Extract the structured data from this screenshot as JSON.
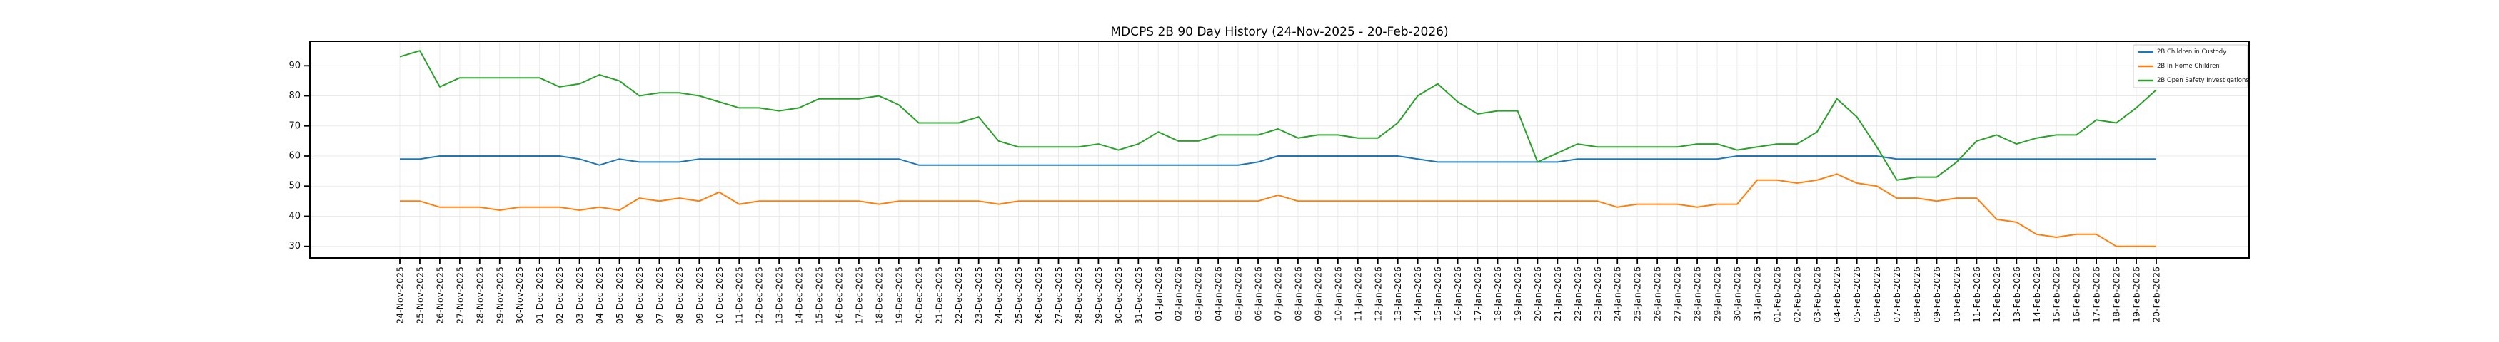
{
  "chart": {
    "title": "MDCPS 2B 90 Day History (24-Nov-2025 - 20-Feb-2026)"
  },
  "chart_data": {
    "type": "line",
    "title": "MDCPS 2B 90 Day History (24-Nov-2025 - 20-Feb-2026)",
    "xlabel": "",
    "ylabel": "",
    "grid": true,
    "legend_position": "upper right",
    "background_color": "#ffffff",
    "grid_color": "#ebebeb",
    "ylim": [
      26,
      98.3
    ],
    "yticks": [
      30,
      40,
      50,
      60,
      70,
      80,
      90
    ],
    "x": [
      "24-Nov-2025",
      "25-Nov-2025",
      "26-Nov-2025",
      "27-Nov-2025",
      "28-Nov-2025",
      "29-Nov-2025",
      "30-Nov-2025",
      "01-Dec-2025",
      "02-Dec-2025",
      "03-Dec-2025",
      "04-Dec-2025",
      "05-Dec-2025",
      "06-Dec-2025",
      "07-Dec-2025",
      "08-Dec-2025",
      "09-Dec-2025",
      "10-Dec-2025",
      "11-Dec-2025",
      "12-Dec-2025",
      "13-Dec-2025",
      "14-Dec-2025",
      "15-Dec-2025",
      "16-Dec-2025",
      "17-Dec-2025",
      "18-Dec-2025",
      "19-Dec-2025",
      "20-Dec-2025",
      "21-Dec-2025",
      "22-Dec-2025",
      "23-Dec-2025",
      "24-Dec-2025",
      "25-Dec-2025",
      "26-Dec-2025",
      "27-Dec-2025",
      "28-Dec-2025",
      "29-Dec-2025",
      "30-Dec-2025",
      "31-Dec-2025",
      "01-Jan-2026",
      "02-Jan-2026",
      "03-Jan-2026",
      "04-Jan-2026",
      "05-Jan-2026",
      "06-Jan-2026",
      "07-Jan-2026",
      "08-Jan-2026",
      "09-Jan-2026",
      "10-Jan-2026",
      "11-Jan-2026",
      "12-Jan-2026",
      "13-Jan-2026",
      "14-Jan-2026",
      "15-Jan-2026",
      "16-Jan-2026",
      "17-Jan-2026",
      "18-Jan-2026",
      "19-Jan-2026",
      "20-Jan-2026",
      "21-Jan-2026",
      "22-Jan-2026",
      "23-Jan-2026",
      "24-Jan-2026",
      "25-Jan-2026",
      "26-Jan-2026",
      "27-Jan-2026",
      "28-Jan-2026",
      "29-Jan-2026",
      "30-Jan-2026",
      "31-Jan-2026",
      "01-Feb-2026",
      "02-Feb-2026",
      "03-Feb-2026",
      "04-Feb-2026",
      "05-Feb-2026",
      "06-Feb-2026",
      "07-Feb-2026",
      "08-Feb-2026",
      "09-Feb-2026",
      "10-Feb-2026",
      "11-Feb-2026",
      "12-Feb-2026",
      "13-Feb-2026",
      "14-Feb-2026",
      "15-Feb-2026",
      "16-Feb-2026",
      "17-Feb-2026",
      "18-Feb-2026",
      "19-Feb-2026",
      "20-Feb-2026"
    ],
    "series": [
      {
        "name": "2B Children in Custody",
        "color": "#1f77b4",
        "values": [
          59,
          59,
          60,
          60,
          60,
          60,
          60,
          60,
          60,
          59,
          57,
          59,
          58,
          58,
          58,
          59,
          59,
          59,
          59,
          59,
          59,
          59,
          59,
          59,
          59,
          59,
          57,
          57,
          57,
          57,
          57,
          57,
          57,
          57,
          57,
          57,
          57,
          57,
          57,
          57,
          57,
          57,
          57,
          58,
          60,
          60,
          60,
          60,
          60,
          60,
          60,
          59,
          58,
          58,
          58,
          58,
          58,
          58,
          58,
          59,
          59,
          59,
          59,
          59,
          59,
          59,
          59,
          60,
          60,
          60,
          60,
          60,
          60,
          60,
          60,
          59,
          59,
          59,
          59,
          59,
          59,
          59,
          59,
          59,
          59,
          59,
          59,
          59,
          59
        ]
      },
      {
        "name": "2B In Home Children",
        "color": "#ff7f0e",
        "values": [
          45,
          45,
          43,
          43,
          43,
          42,
          43,
          43,
          43,
          42,
          43,
          42,
          46,
          45,
          46,
          45,
          48,
          44,
          45,
          45,
          45,
          45,
          45,
          45,
          44,
          45,
          45,
          45,
          45,
          45,
          44,
          45,
          45,
          45,
          45,
          45,
          45,
          45,
          45,
          45,
          45,
          45,
          45,
          45,
          47,
          45,
          45,
          45,
          45,
          45,
          45,
          45,
          45,
          45,
          45,
          45,
          45,
          45,
          45,
          45,
          45,
          43,
          44,
          44,
          44,
          43,
          44,
          44,
          52,
          52,
          51,
          52,
          54,
          51,
          50,
          46,
          46,
          45,
          46,
          46,
          39,
          38,
          34,
          33,
          34,
          34,
          30,
          30,
          30
        ]
      },
      {
        "name": "2B Open Safety Investigations",
        "color": "#2ca02c",
        "values": [
          93,
          95,
          83,
          86,
          86,
          86,
          86,
          86,
          83,
          84,
          87,
          85,
          80,
          81,
          81,
          80,
          78,
          76,
          76,
          75,
          76,
          79,
          79,
          79,
          80,
          77,
          71,
          71,
          71,
          73,
          65,
          63,
          63,
          63,
          63,
          64,
          62,
          64,
          68,
          65,
          65,
          67,
          67,
          67,
          69,
          66,
          67,
          67,
          66,
          66,
          71,
          80,
          84,
          78,
          74,
          75,
          75,
          58,
          61,
          64,
          63,
          63,
          63,
          63,
          63,
          64,
          64,
          62,
          63,
          64,
          64,
          68,
          79,
          73,
          63,
          52,
          53,
          53,
          58,
          65,
          67,
          64,
          66,
          67,
          67,
          72,
          71,
          76,
          82
        ]
      }
    ]
  }
}
